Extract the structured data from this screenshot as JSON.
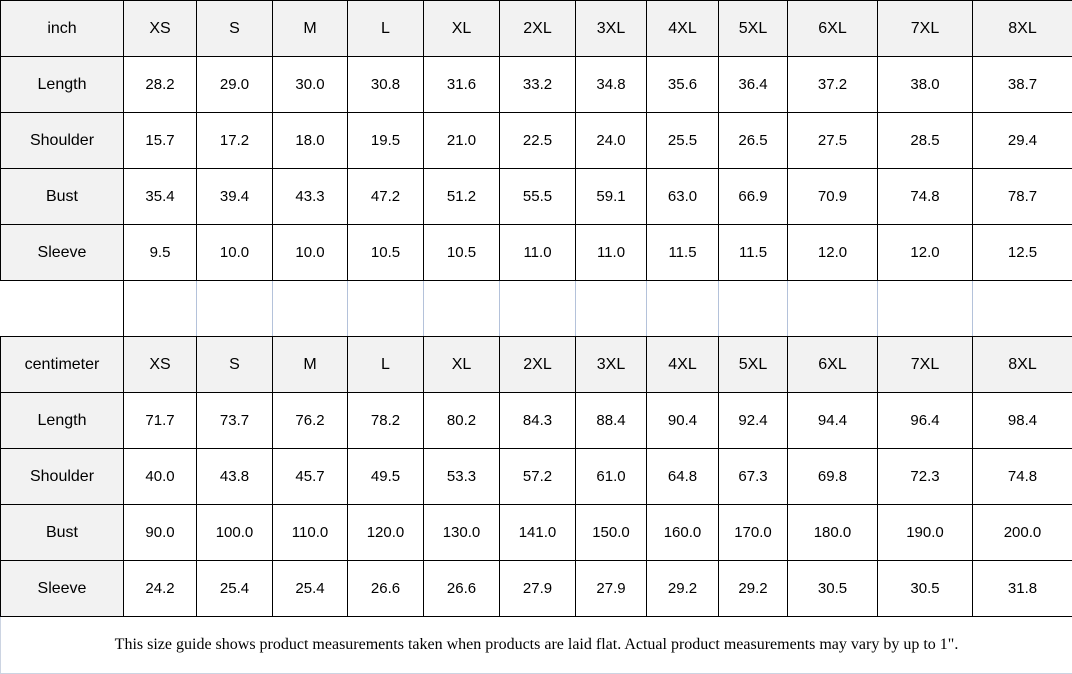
{
  "inch": {
    "unit_label": "inch",
    "sizes": [
      "XS",
      "S",
      "M",
      "L",
      "XL",
      "2XL",
      "3XL",
      "4XL",
      "5XL",
      "6XL",
      "7XL",
      "8XL"
    ],
    "rows": [
      {
        "label": "Length",
        "values": [
          "28.2",
          "29.0",
          "30.0",
          "30.8",
          "31.6",
          "33.2",
          "34.8",
          "35.6",
          "36.4",
          "37.2",
          "38.0",
          "38.7"
        ]
      },
      {
        "label": "Shoulder",
        "values": [
          "15.7",
          "17.2",
          "18.0",
          "19.5",
          "21.0",
          "22.5",
          "24.0",
          "25.5",
          "26.5",
          "27.5",
          "28.5",
          "29.4"
        ]
      },
      {
        "label": "Bust",
        "values": [
          "35.4",
          "39.4",
          "43.3",
          "47.2",
          "51.2",
          "55.5",
          "59.1",
          "63.0",
          "66.9",
          "70.9",
          "74.8",
          "78.7"
        ]
      },
      {
        "label": "Sleeve",
        "values": [
          "9.5",
          "10.0",
          "10.0",
          "10.5",
          "10.5",
          "11.0",
          "11.0",
          "11.5",
          "11.5",
          "12.0",
          "12.0",
          "12.5"
        ]
      }
    ]
  },
  "centimeter": {
    "unit_label": "centimeter",
    "sizes": [
      "XS",
      "S",
      "M",
      "L",
      "XL",
      "2XL",
      "3XL",
      "4XL",
      "5XL",
      "6XL",
      "7XL",
      "8XL"
    ],
    "rows": [
      {
        "label": "Length",
        "values": [
          "71.7",
          "73.7",
          "76.2",
          "78.2",
          "80.2",
          "84.3",
          "88.4",
          "90.4",
          "92.4",
          "94.4",
          "96.4",
          "98.4"
        ]
      },
      {
        "label": "Shoulder",
        "values": [
          "40.0",
          "43.8",
          "45.7",
          "49.5",
          "53.3",
          "57.2",
          "61.0",
          "64.8",
          "67.3",
          "69.8",
          "72.3",
          "74.8"
        ]
      },
      {
        "label": "Bust",
        "values": [
          "90.0",
          "100.0",
          "110.0",
          "120.0",
          "130.0",
          "141.0",
          "150.0",
          "160.0",
          "170.0",
          "180.0",
          "190.0",
          "200.0"
        ]
      },
      {
        "label": "Sleeve",
        "values": [
          "24.2",
          "25.4",
          "25.4",
          "26.6",
          "26.6",
          "27.9",
          "27.9",
          "29.2",
          "29.2",
          "30.5",
          "30.5",
          "31.8"
        ]
      }
    ]
  },
  "footer": {
    "note": "This size guide shows product measurements taken when products are laid flat. Actual product measurements may vary by up to 1\"."
  },
  "colors": {
    "header_bg": "#f2f2f2",
    "cell_bg": "#ffffff",
    "border_dark": "#000000",
    "border_light": "#b4c2da",
    "text": "#000000"
  }
}
